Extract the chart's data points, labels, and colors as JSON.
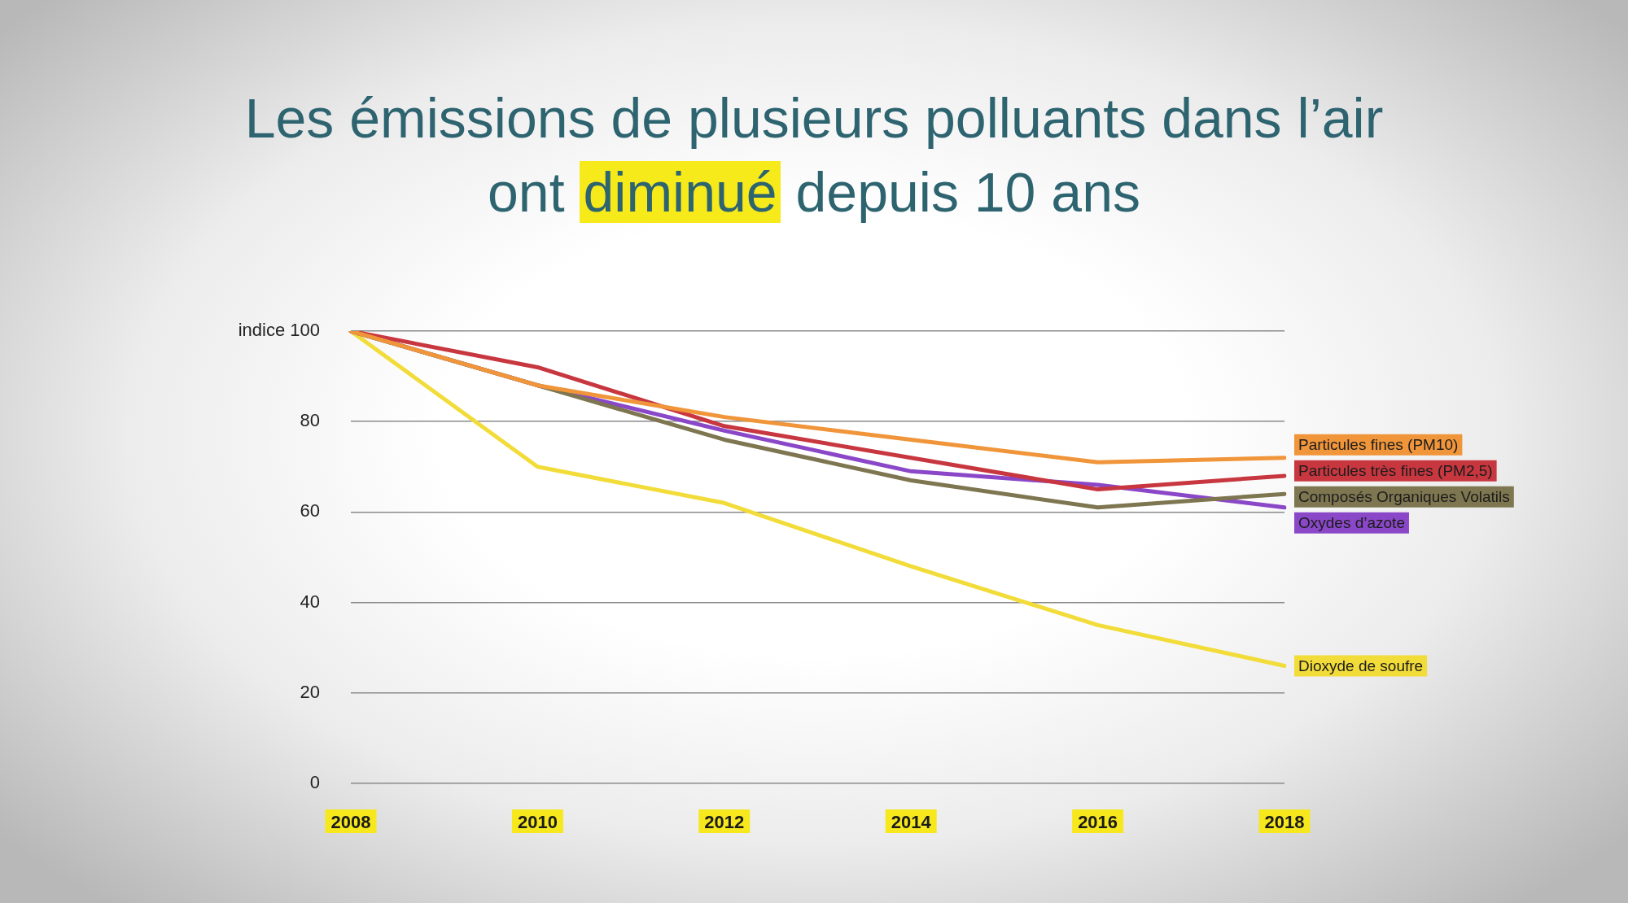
{
  "chart_data": {
    "type": "line",
    "title": "Les émissions de plusieurs polluants dans l’air ont diminué depuis 10 ans",
    "categories": [
      "2008",
      "2010",
      "2012",
      "2014",
      "2016",
      "2018"
    ],
    "series": [
      {
        "name": "Particules fines (PM10)",
        "color": "#f0953a",
        "values": [
          100,
          88,
          81,
          76,
          71,
          72
        ]
      },
      {
        "name": "Particules très fines (PM2,5)",
        "color": "#c8373f",
        "values": [
          100,
          92,
          79,
          72,
          65,
          68
        ]
      },
      {
        "name": "Composés Organiques Volatils",
        "color": "#7d7650",
        "values": [
          100,
          88,
          76,
          67,
          61,
          64
        ]
      },
      {
        "name": "Oxydes d’azote",
        "color": "#8a47c8",
        "values": [
          100,
          88,
          78,
          69,
          66,
          61
        ]
      },
      {
        "name": "Dioxyde de soufre",
        "color": "#f2dc3a",
        "values": [
          100,
          70,
          62,
          48,
          35,
          26
        ]
      }
    ],
    "ylim": [
      0,
      100
    ],
    "yticks": [
      0,
      20,
      40,
      60,
      80,
      {
        "value": 100,
        "label": "indice 100"
      }
    ],
    "grid": "y",
    "marker": "none",
    "line_style": "solid"
  }
}
